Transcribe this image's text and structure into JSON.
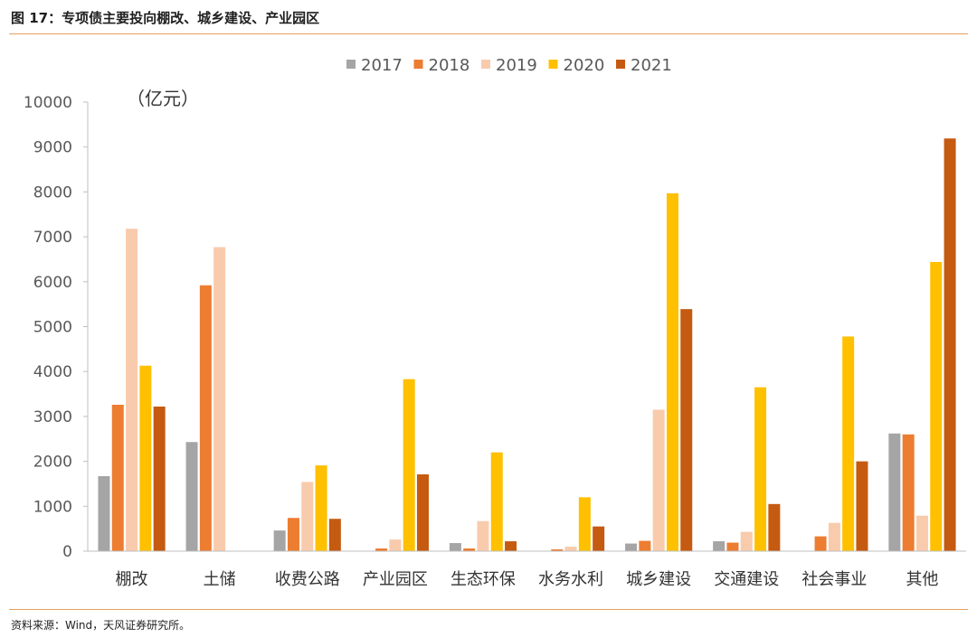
{
  "figure_title": "图 17：专项债主要投向棚改、城乡建设、产业园区",
  "source_note": "资料来源：Wind，天风证券研究所。",
  "colors": {
    "rule": "#e8a060",
    "axis": "#bfbfbf",
    "text": "#595959"
  },
  "chart_data": {
    "type": "bar",
    "unit_label": "（亿元）",
    "ylim": [
      0,
      10000
    ],
    "yticks": [
      0,
      1000,
      2000,
      3000,
      4000,
      5000,
      6000,
      7000,
      8000,
      9000,
      10000
    ],
    "grid": false,
    "legend_position": "top-center",
    "categories": [
      "棚改",
      "土储",
      "收费公路",
      "产业园区",
      "生态环保",
      "水务水利",
      "城乡建设",
      "交通建设",
      "社会事业",
      "其他"
    ],
    "series": [
      {
        "name": "2017",
        "color": "#a5a5a5",
        "values": [
          1670,
          2430,
          460,
          0,
          180,
          0,
          170,
          220,
          0,
          2620
        ]
      },
      {
        "name": "2018",
        "color": "#ed7d31",
        "values": [
          3260,
          5920,
          740,
          60,
          60,
          40,
          230,
          190,
          330,
          2600
        ]
      },
      {
        "name": "2019",
        "color": "#f8cbad",
        "values": [
          7180,
          6770,
          1540,
          260,
          670,
          100,
          3150,
          430,
          630,
          790
        ]
      },
      {
        "name": "2020",
        "color": "#ffc000",
        "values": [
          4130,
          0,
          1910,
          3830,
          2200,
          1200,
          7970,
          3650,
          4780,
          6440
        ]
      },
      {
        "name": "2021",
        "color": "#c55a11",
        "values": [
          3220,
          0,
          720,
          1710,
          220,
          550,
          5390,
          1050,
          2000,
          9190
        ]
      }
    ]
  }
}
